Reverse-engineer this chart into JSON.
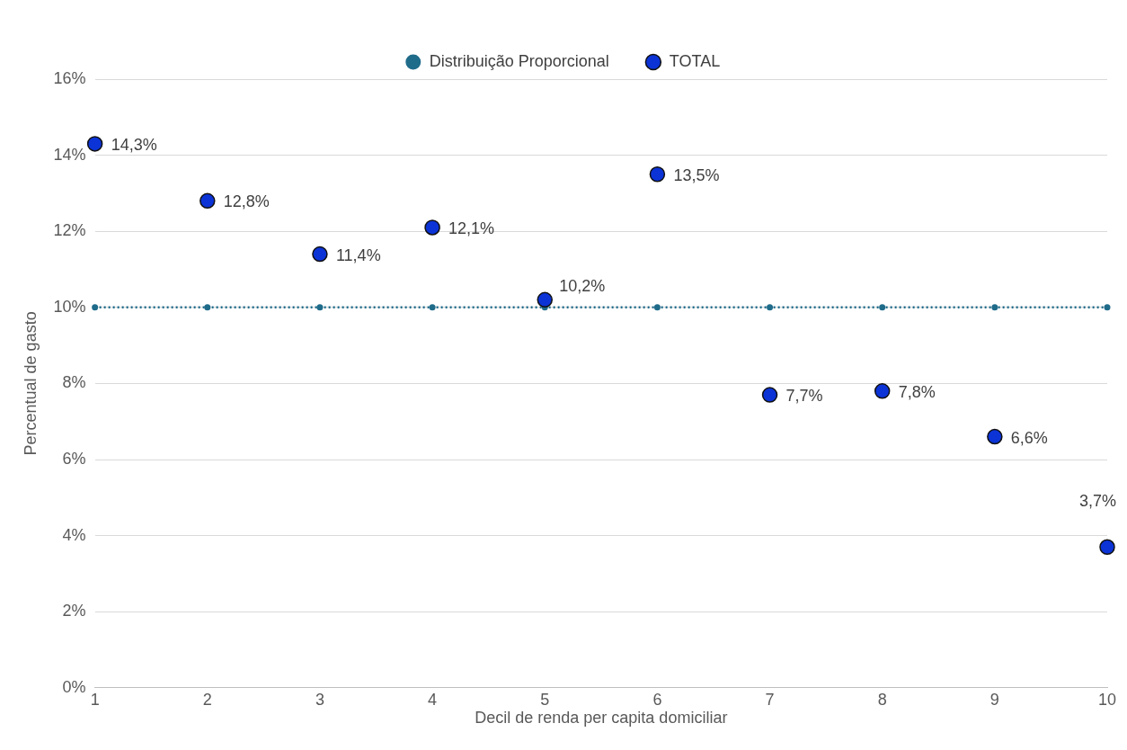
{
  "chart_data": {
    "type": "scatter",
    "xlabel": "Decil de renda per capita domiciliar",
    "ylabel": "Percentual de gasto",
    "x": [
      1,
      2,
      3,
      4,
      5,
      6,
      7,
      8,
      9,
      10
    ],
    "xlim": [
      1,
      10
    ],
    "xticks": [
      1,
      2,
      3,
      4,
      5,
      6,
      7,
      8,
      9,
      10
    ],
    "ylim": [
      0,
      16
    ],
    "yticks": [
      {
        "value": 0,
        "label": "0%"
      },
      {
        "value": 2,
        "label": "2%"
      },
      {
        "value": 4,
        "label": "4%"
      },
      {
        "value": 6,
        "label": "6%"
      },
      {
        "value": 8,
        "label": "8%"
      },
      {
        "value": 10,
        "label": "10%"
      },
      {
        "value": 12,
        "label": "12%"
      },
      {
        "value": 14,
        "label": "14%"
      },
      {
        "value": 16,
        "label": "16%"
      }
    ],
    "grid": "y",
    "legend": "top",
    "series": [
      {
        "name": "Distribuição Proporcional",
        "type": "line",
        "color": "#1f6b8a",
        "marker": "circle",
        "line_style": "dotted",
        "values": [
          10,
          10,
          10,
          10,
          10,
          10,
          10,
          10,
          10,
          10
        ]
      },
      {
        "name": "TOTAL",
        "color": "#0b33d6",
        "marker": "circle",
        "values": [
          14.3,
          12.8,
          11.4,
          12.1,
          10.2,
          13.5,
          7.7,
          7.8,
          6.6,
          3.7
        ],
        "value_labels": [
          "14,3%",
          "12,8%",
          "11,4%",
          "12,1%",
          "10,2%",
          "13,5%",
          "7,7%",
          "7,8%",
          "6,6%",
          "3,7%"
        ]
      }
    ]
  }
}
